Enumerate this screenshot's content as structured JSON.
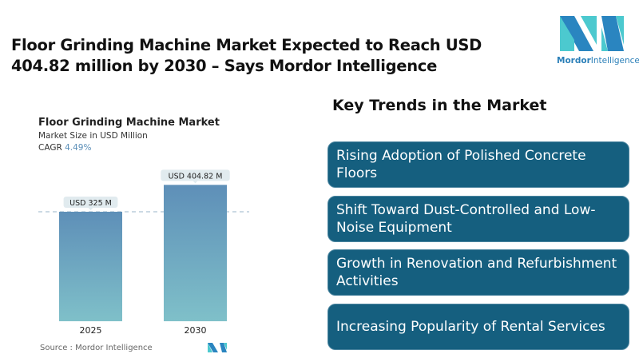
{
  "headline": "Floor Grinding Machine Market Expected to Reach USD 404.82 million by 2030 – Says Mordor Intelligence",
  "logo": {
    "text_bold": "Mordor",
    "text_regular": "Intelligence"
  },
  "chart_data": {
    "type": "bar",
    "title": "Floor Grinding Machine Market",
    "subtitle": "Market Size in USD Million",
    "cagr_label": "CAGR",
    "cagr_value": "4.49%",
    "categories": [
      "2025",
      "2030"
    ],
    "values": [
      325,
      404.82
    ],
    "data_labels": [
      "USD 325 M",
      "USD 404.82 M"
    ],
    "ylim": [
      0,
      420
    ],
    "bar_gradient": [
      "#5e8fb8",
      "#7fc0c9"
    ],
    "reference_line": "dashed line at 2025 value",
    "source": "Source :  Mordor Intelligence"
  },
  "trends": {
    "title": "Key Trends in the Market",
    "items": [
      "Rising Adoption of Polished Concrete Floors",
      "Shift Toward Dust-Controlled and Low-Noise Equipment",
      "Growth in Renovation and Refurbishment Activities",
      "Increasing Popularity of Rental Services"
    ],
    "card_color": "#155f7f"
  }
}
